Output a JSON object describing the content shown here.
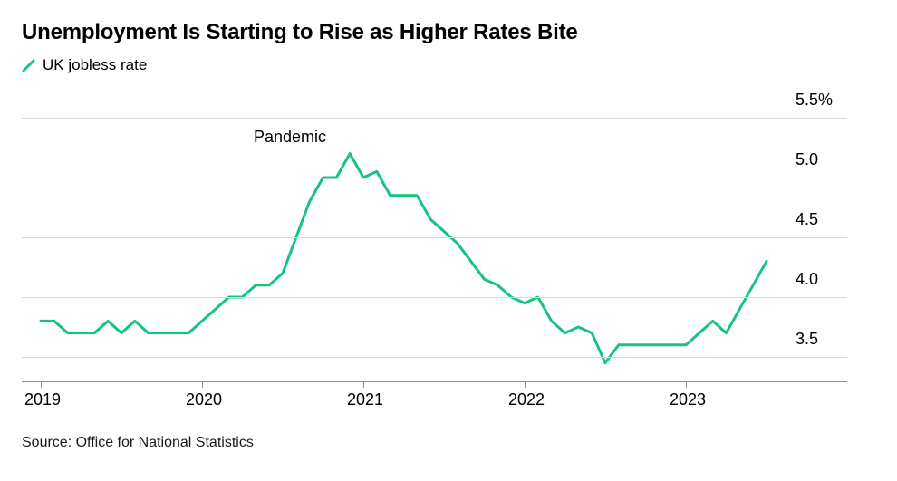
{
  "header": {
    "title": "Unemployment Is Starting to Rise as Higher Rates Bite",
    "legend": {
      "label": "UK jobless rate"
    }
  },
  "source": "Source: Office for National Statistics",
  "colors": {
    "line": "#16C47F",
    "grid": "#d9d9d9",
    "axis": "#8f8f8f"
  },
  "chart_data": {
    "type": "line",
    "title": "Unemployment Is Starting to Rise as Higher Rates Bite",
    "legend_position": "top-left",
    "grid": "horizontal",
    "x_start_year": 2019,
    "x_step_months": 1,
    "xlim": [
      2018.88,
      2023.65
    ],
    "ylim": [
      3.3,
      5.5
    ],
    "yticks": {
      "values": [
        5.5,
        5.0,
        4.5,
        4.0,
        3.5
      ],
      "labels": [
        "5.5%",
        "5.0",
        "4.5",
        "4.0",
        "3.5"
      ]
    },
    "xticks": {
      "values": [
        2019,
        2020,
        2021,
        2022,
        2023
      ],
      "labels": [
        "2019",
        "2020",
        "2021",
        "2022",
        "2023"
      ]
    },
    "annotation": {
      "text": "Pandemic",
      "x": 2020.32,
      "y": 5.42
    },
    "series": [
      {
        "name": "UK jobless rate",
        "unit": "%",
        "values": [
          3.8,
          3.8,
          3.7,
          3.7,
          3.7,
          3.8,
          3.7,
          3.8,
          3.7,
          3.7,
          3.7,
          3.7,
          3.8,
          3.9,
          4.0,
          4.0,
          4.1,
          4.1,
          4.2,
          4.5,
          4.8,
          5.0,
          5.0,
          5.2,
          5.0,
          5.05,
          4.85,
          4.85,
          4.85,
          4.65,
          4.55,
          4.45,
          4.3,
          4.15,
          4.1,
          4.0,
          3.95,
          4.0,
          3.8,
          3.7,
          3.75,
          3.7,
          3.45,
          3.6,
          3.6,
          3.6,
          3.6,
          3.6,
          3.6,
          3.7,
          3.8,
          3.7,
          3.9,
          4.1,
          4.3
        ]
      }
    ]
  }
}
